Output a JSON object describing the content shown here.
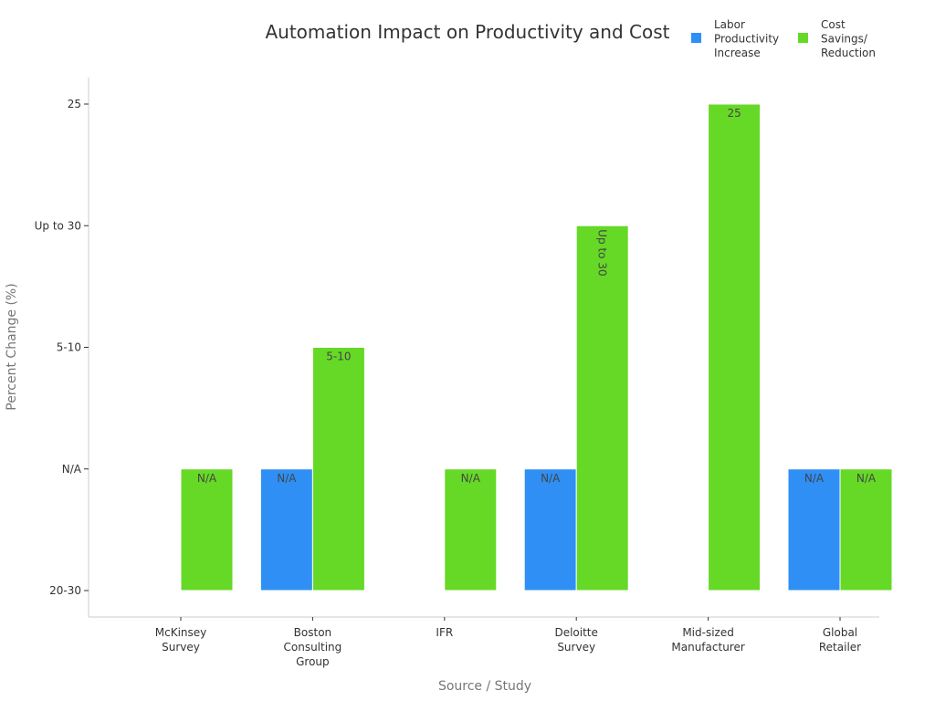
{
  "chart_data": {
    "type": "bar",
    "title": "Automation Impact on Productivity and Cost",
    "xlabel": "Source / Study",
    "ylabel": "Percent Change (%)",
    "categories": [
      [
        "McKinsey",
        "Survey"
      ],
      [
        "Boston",
        "Consulting",
        "Group"
      ],
      [
        "IFR"
      ],
      [
        "Deloitte",
        "Survey"
      ],
      [
        "Mid-sized",
        "Manufacturer"
      ],
      [
        "Global",
        "Retailer"
      ]
    ],
    "y_categories": [
      "20-30",
      "N/A",
      "5-10",
      "Up to 30",
      "25"
    ],
    "series": [
      {
        "name": "Labor Productivity Increase",
        "legend_lines": [
          "Labor",
          "Productivity",
          "Increase"
        ],
        "color": "#2f8ff5",
        "values": [
          null,
          "N/A",
          null,
          "N/A",
          null,
          "N/A"
        ],
        "labels": [
          null,
          "N/A",
          null,
          "N/A",
          null,
          "N/A"
        ]
      },
      {
        "name": "Cost Savings/ Reduction",
        "legend_lines": [
          "Cost",
          "Savings/",
          "Reduction"
        ],
        "color": "#66d927",
        "values": [
          "N/A",
          "5-10",
          "N/A",
          "Up to 30",
          "25",
          "N/A"
        ],
        "labels": [
          "N/A",
          "5-10",
          "N/A",
          "Up to 30",
          "25",
          "N/A"
        ]
      }
    ],
    "rotated_labels": [
      "Up to 30"
    ]
  }
}
